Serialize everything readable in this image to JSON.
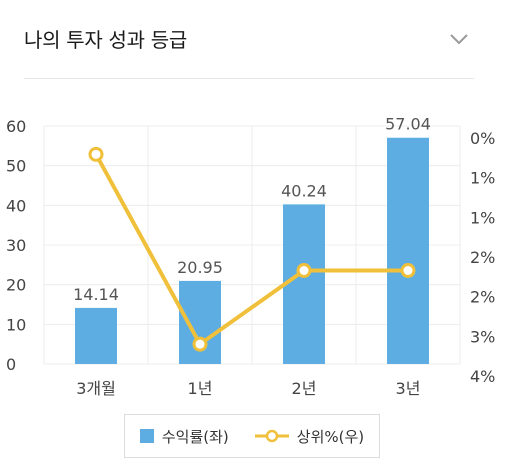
{
  "header": {
    "title": "나의 투자 성과 등급"
  },
  "colors": {
    "bar": "#5DADE2",
    "line": "#F0C03A",
    "grid": "#ececec",
    "axis_text": "#444444"
  },
  "legend": {
    "bar_label": "수익률(좌)",
    "line_label": "상위%(우)"
  },
  "chart_data": {
    "type": "bar",
    "categories": [
      "3개월",
      "1년",
      "2년",
      "3년"
    ],
    "series": [
      {
        "name": "수익률(좌)",
        "type": "bar",
        "axis": "left",
        "values": [
          14.14,
          20.95,
          40.24,
          57.04
        ],
        "data_labels": [
          "14.14",
          "20.95",
          "40.24",
          "57.04"
        ]
      },
      {
        "name": "상위%(우)",
        "type": "line",
        "axis": "right",
        "values": [
          0.5,
          3.85,
          2.55,
          2.55
        ]
      }
    ],
    "y_left": {
      "ticks": [
        0,
        10,
        20,
        30,
        40,
        50,
        60
      ],
      "ylim": [
        0,
        60
      ]
    },
    "y_right": {
      "ticks": [
        "0%",
        "1%",
        "1%",
        "2%",
        "2%",
        "3%",
        "4%"
      ],
      "ylim": [
        0,
        4.2
      ],
      "reversed": true
    },
    "grid": true,
    "legend_position": "bottom"
  }
}
